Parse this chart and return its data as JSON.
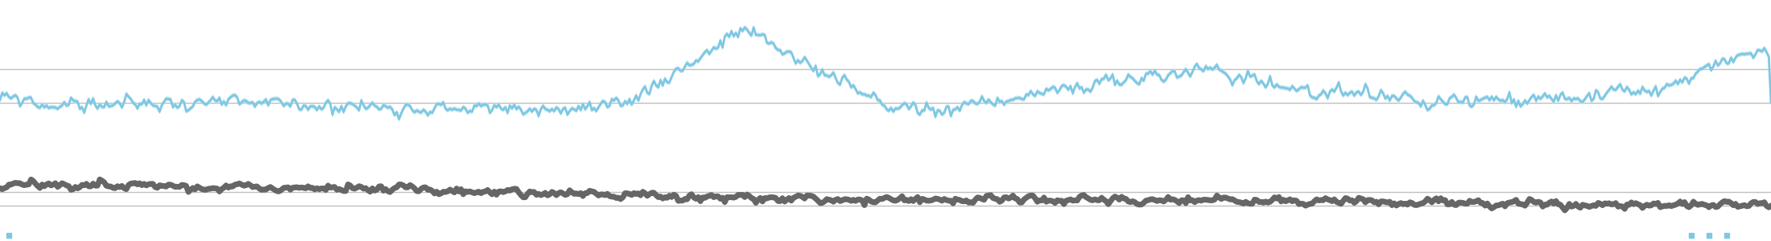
{
  "background_color": "#ffffff",
  "grid_color": "#c0c0c0",
  "blue_line_color": "#7ec8e3",
  "blue_fill_color": "#b8e0f0",
  "gray_line_color": "#666666",
  "blue_line_lw": 2.0,
  "gray_line_lw": 5.0,
  "n_points": 800,
  "seed": 99,
  "figsize": [
    22.0,
    3.0
  ],
  "dpi": 100
}
